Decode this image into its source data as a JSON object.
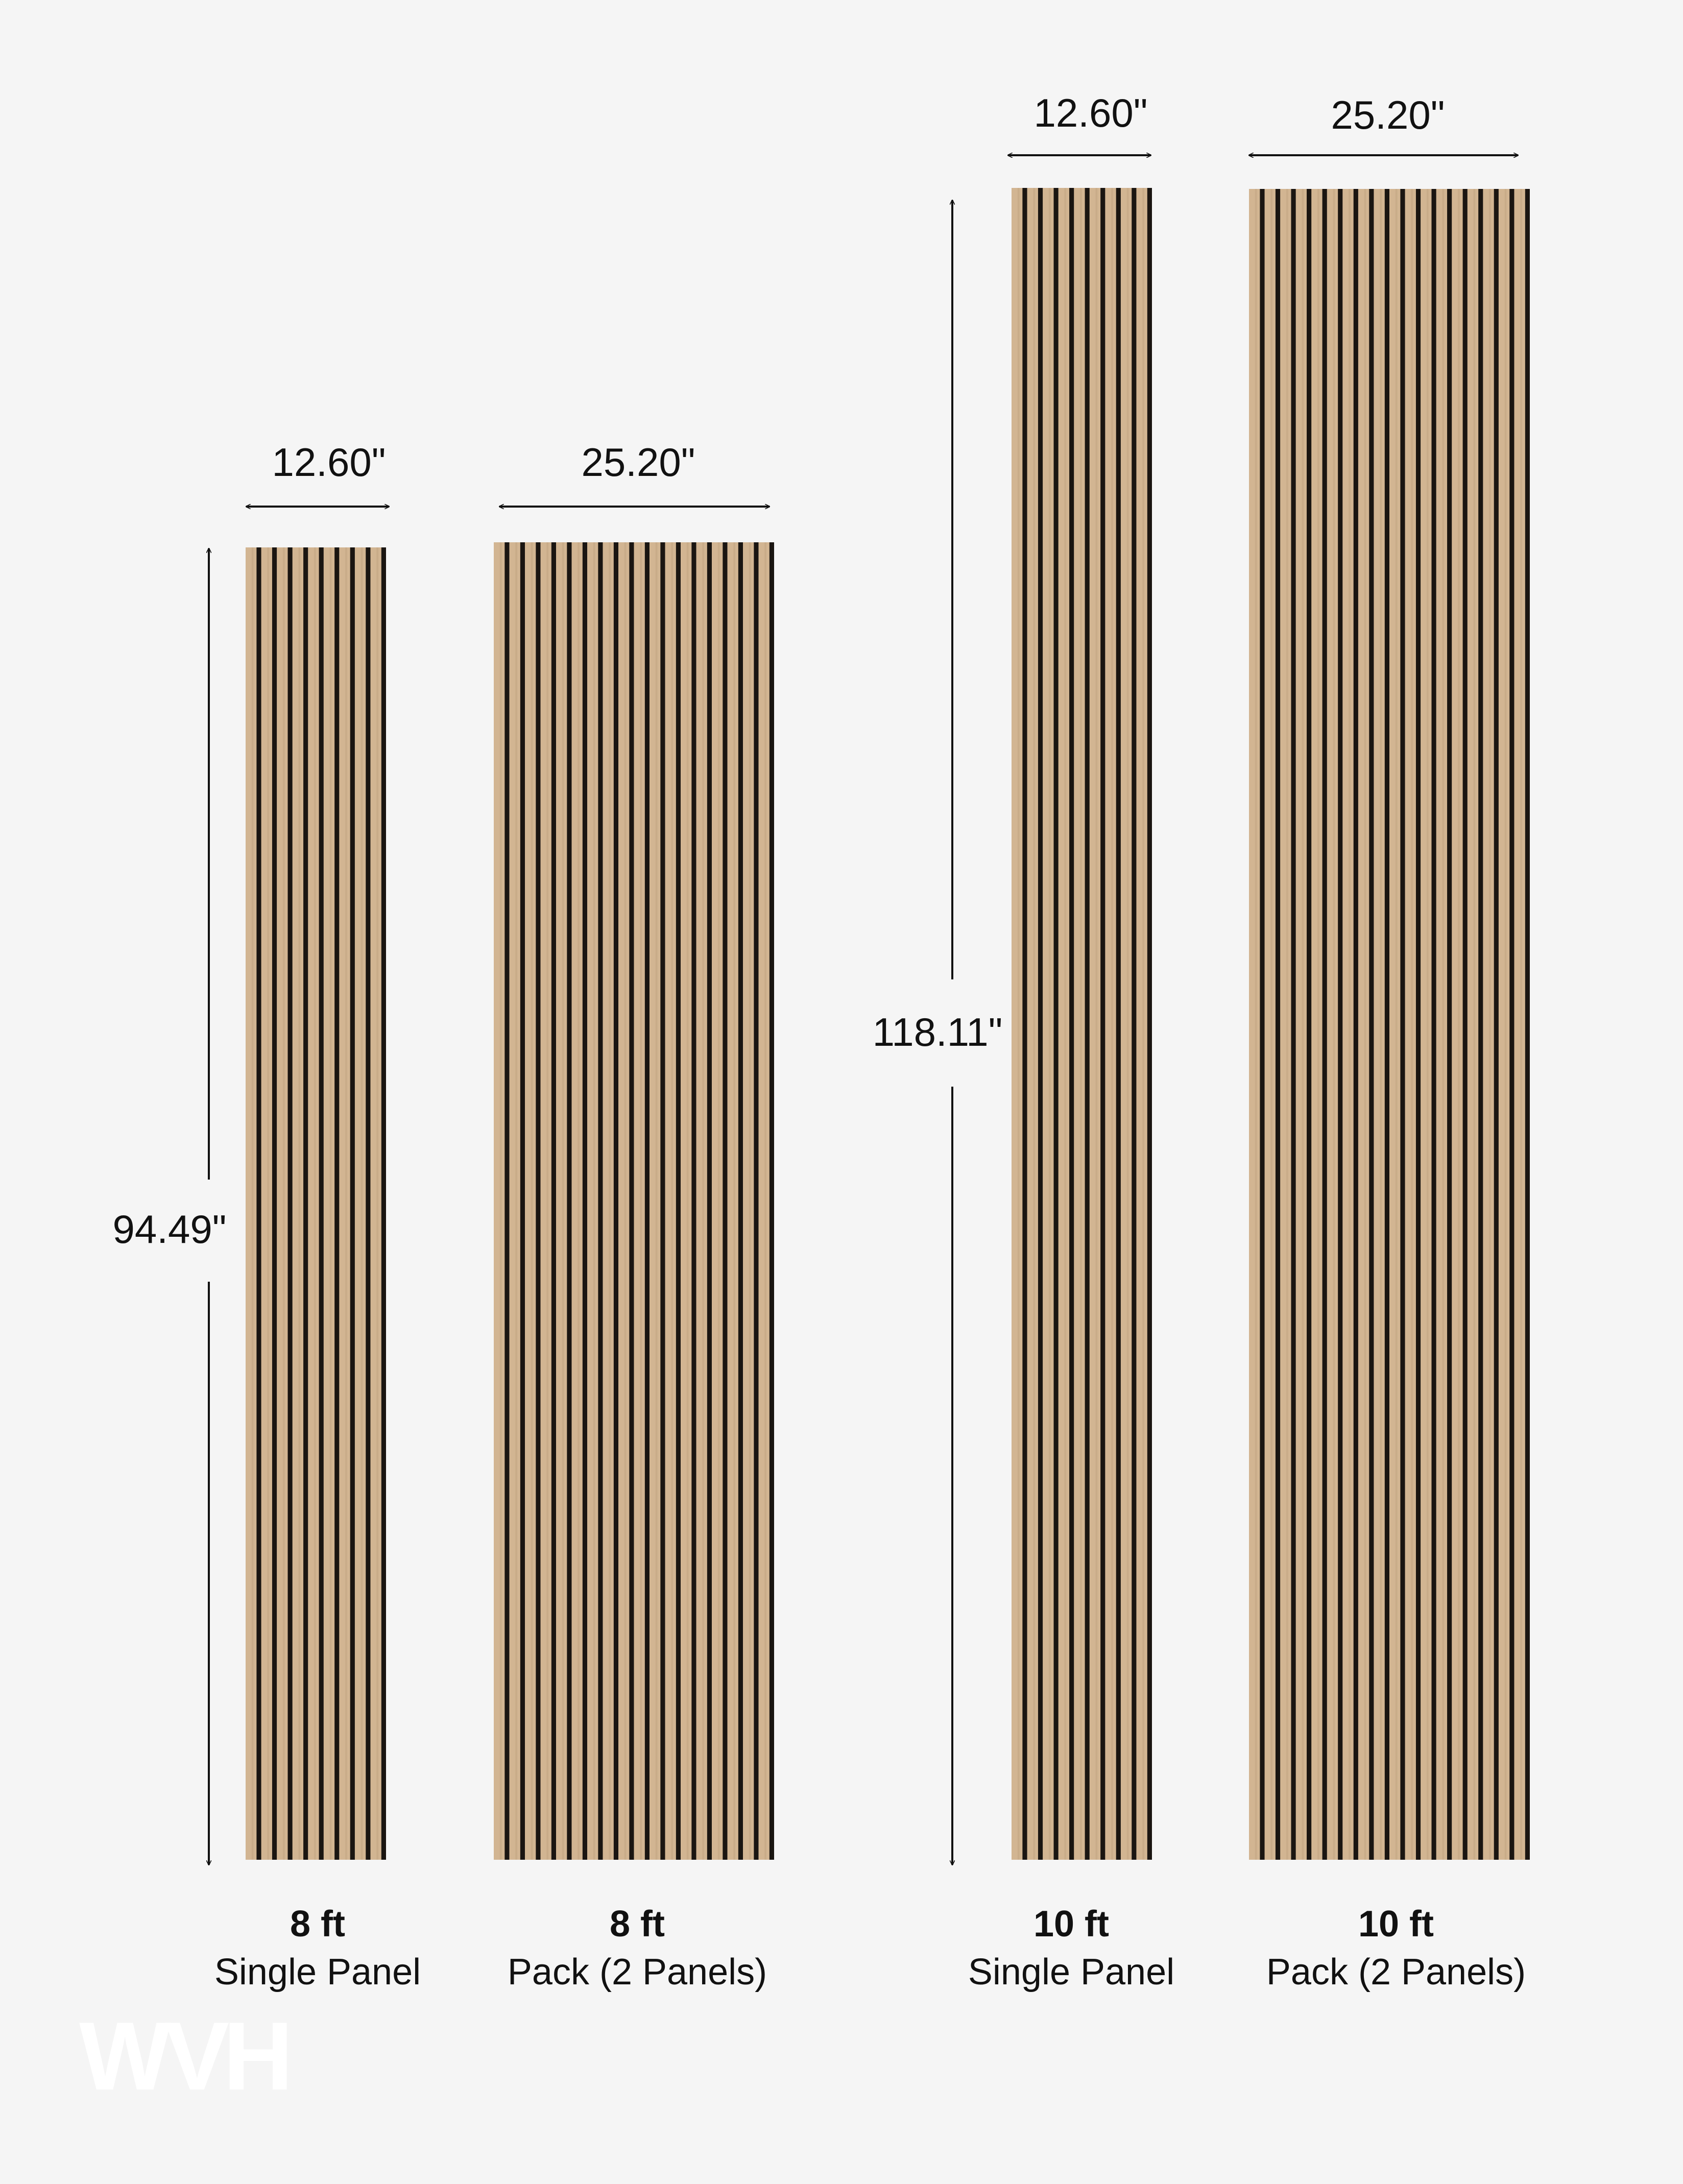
{
  "colors": {
    "background": "#f5f5f5",
    "wood": "#d2b592",
    "wood_dark": "#b99b77",
    "slat_gap": "#1a1511",
    "dimension_line": "#111111",
    "logo": "#ffffff"
  },
  "dimensions": {
    "single_width": "12.60\"",
    "pack_width": "25.20\"",
    "height_8ft": "94.49\"",
    "height_10ft": "118.11\""
  },
  "panels": [
    {
      "size": "8 ft",
      "type": "Single Panel",
      "slats": 9
    },
    {
      "size": "8 ft",
      "type": "Pack (2 Panels)",
      "slats": 18
    },
    {
      "size": "10 ft",
      "type": "Single Panel",
      "slats": 9
    },
    {
      "size": "10 ft",
      "type": "Pack (2 Panels)",
      "slats": 18
    }
  ],
  "logo": {
    "text": "WVH"
  }
}
